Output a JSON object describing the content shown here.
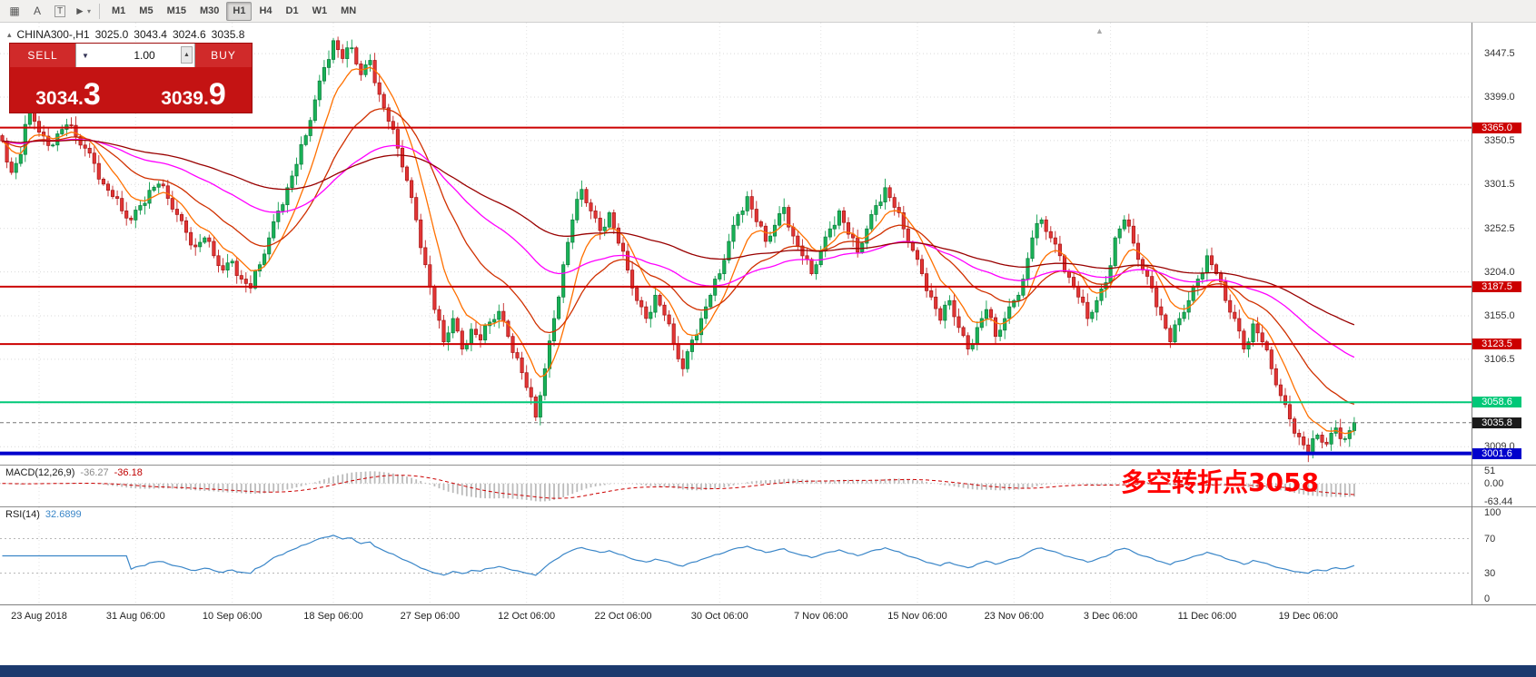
{
  "toolbar": {
    "tool_icons": [
      {
        "name": "chart-grid-icon",
        "glyph": "▦"
      },
      {
        "name": "text-tool-icon",
        "glyph": "A"
      },
      {
        "name": "label-tool-icon",
        "glyph": "T",
        "boxed": true
      },
      {
        "name": "cursor-tool-icon",
        "glyph": "►",
        "dropdown": "▾"
      }
    ],
    "timeframes": [
      "M1",
      "M5",
      "M15",
      "M30",
      "H1",
      "H4",
      "D1",
      "W1",
      "MN"
    ],
    "active_timeframe": "H1"
  },
  "chart_header": {
    "collapse_icon": "▴",
    "symbol_period": "CHINA300-,H1",
    "open": "3025.0",
    "high": "3043.4",
    "low": "3024.6",
    "close": "3035.8"
  },
  "trade_panel": {
    "sell_label": "SELL",
    "buy_label": "BUY",
    "volume": "1.00",
    "dropdown_icon": "▼",
    "spinner_icon": "▲",
    "sell_price_main": "3034.",
    "sell_price_big": "3",
    "buy_price_main": "3039.",
    "buy_price_big": "9"
  },
  "annotation": {
    "text": "多空转折点3058",
    "color": "#ff0000"
  },
  "scroll_marker_icon": "▲",
  "chart_data": {
    "type": "candlestick",
    "symbol": "CHINA300-",
    "timeframe": "H1",
    "title": "CHINA300-,H1 3025.0 3043.4 3024.6 3035.8",
    "ohlc_display": {
      "open": 3025.0,
      "high": 3043.4,
      "low": 3024.6,
      "close": 3035.8
    },
    "price_range": [
      2989,
      3482
    ],
    "grid": true,
    "y_ticks": [
      {
        "label": "3447.5",
        "price": 3447.5
      },
      {
        "label": "3399.0",
        "price": 3399.0
      },
      {
        "label": "3350.5",
        "price": 3350.5
      },
      {
        "label": "3301.5",
        "price": 3301.5
      },
      {
        "label": "3252.5",
        "price": 3252.5
      },
      {
        "label": "3204.0",
        "price": 3204.0
      },
      {
        "label": "3155.0",
        "price": 3155.0
      },
      {
        "label": "3106.5",
        "price": 3106.5
      },
      {
        "label": "3058.0",
        "price": 3058.0
      },
      {
        "label": "3009.0",
        "price": 3009.0
      }
    ],
    "x_labels": [
      "23 Aug 2018",
      "31 Aug 06:00",
      "10 Sep 06:00",
      "18 Sep 06:00",
      "27 Sep 06:00",
      "12 Oct 06:00",
      "22 Oct 06:00",
      "30 Oct 06:00",
      "7 Nov 06:00",
      "15 Nov 06:00",
      "23 Nov 06:00",
      "3 Dec 06:00",
      "11 Dec 06:00",
      "19 Dec 06:00"
    ],
    "closes": [
      3350,
      3315,
      3335,
      3390,
      3360,
      3345,
      3358,
      3368,
      3355,
      3342,
      3325,
      3302,
      3288,
      3272,
      3262,
      3278,
      3295,
      3302,
      3286,
      3268,
      3248,
      3232,
      3242,
      3222,
      3206,
      3216,
      3196,
      3186,
      3212,
      3242,
      3272,
      3298,
      3324,
      3356,
      3396,
      3432,
      3462,
      3442,
      3454,
      3424,
      3440,
      3402,
      3372,
      3342,
      3306,
      3262,
      3212,
      3162,
      3126,
      3152,
      3118,
      3140,
      3128,
      3148,
      3160,
      3132,
      3108,
      3075,
      3042,
      3096,
      3152,
      3212,
      3262,
      3296,
      3272,
      3250,
      3270,
      3236,
      3206,
      3172,
      3152,
      3178,
      3156,
      3124,
      3096,
      3128,
      3152,
      3178,
      3202,
      3238,
      3268,
      3288,
      3260,
      3238,
      3256,
      3276,
      3244,
      3222,
      3202,
      3228,
      3252,
      3272,
      3246,
      3226,
      3252,
      3278,
      3298,
      3276,
      3252,
      3228,
      3202,
      3176,
      3150,
      3172,
      3142,
      3118,
      3142,
      3162,
      3132,
      3152,
      3172,
      3196,
      3242,
      3262,
      3242,
      3222,
      3198,
      3176,
      3152,
      3172,
      3192,
      3242,
      3262,
      3236,
      3206,
      3186,
      3156,
      3126,
      3152,
      3172,
      3196,
      3222,
      3202,
      3172,
      3152,
      3118,
      3146,
      3126,
      3096,
      3066,
      3040,
      3020,
      3002,
      3022,
      3012,
      3030,
      3018,
      3036
    ],
    "candle_up_color": "#19b257",
    "candle_down_color": "#e23535",
    "hlines": [
      {
        "label": "3365.0",
        "price": 3365.0,
        "color": "#cc0000",
        "width": 2
      },
      {
        "label": "3187.5",
        "price": 3187.5,
        "color": "#cc0000",
        "width": 2
      },
      {
        "label": "3123.5",
        "price": 3123.5,
        "color": "#cc0000",
        "width": 2
      },
      {
        "label": "3058.6",
        "price": 3058.6,
        "color": "#00c878",
        "width": 2
      },
      {
        "label": "3035.8",
        "price": 3035.8,
        "color": "#777777",
        "width": 1,
        "dash": true,
        "tag_bg": "#1a1a1a"
      },
      {
        "label": "3001.6",
        "price": 3001.6,
        "color": "#0000cc",
        "width": 4
      }
    ],
    "ma_colors": {
      "fast": "#ff7000",
      "medium": "#d03000",
      "slow": "#ff00ff",
      "slowest": "#990000"
    },
    "indicators": {
      "macd": {
        "name": "MACD(12,26,9)",
        "value1": "-36.27",
        "value2": "-36.18",
        "axis": [
          {
            "label": "51",
            "value": 51
          },
          {
            "label": "0.00",
            "value": 0
          },
          {
            "label": "-63.44",
            "value": -63.44
          }
        ],
        "histogram_color": "#bbbbbb",
        "signal_color": "#cc0000"
      },
      "rsi": {
        "name": "RSI(14)",
        "value": "32.6899",
        "axis": [
          {
            "label": "100",
            "value": 100
          },
          {
            "label": "70",
            "value": 70
          },
          {
            "label": "30",
            "value": 30
          },
          {
            "label": "0",
            "value": 0
          }
        ],
        "levels": [
          70,
          30
        ],
        "line_color": "#3a86c8"
      }
    }
  }
}
